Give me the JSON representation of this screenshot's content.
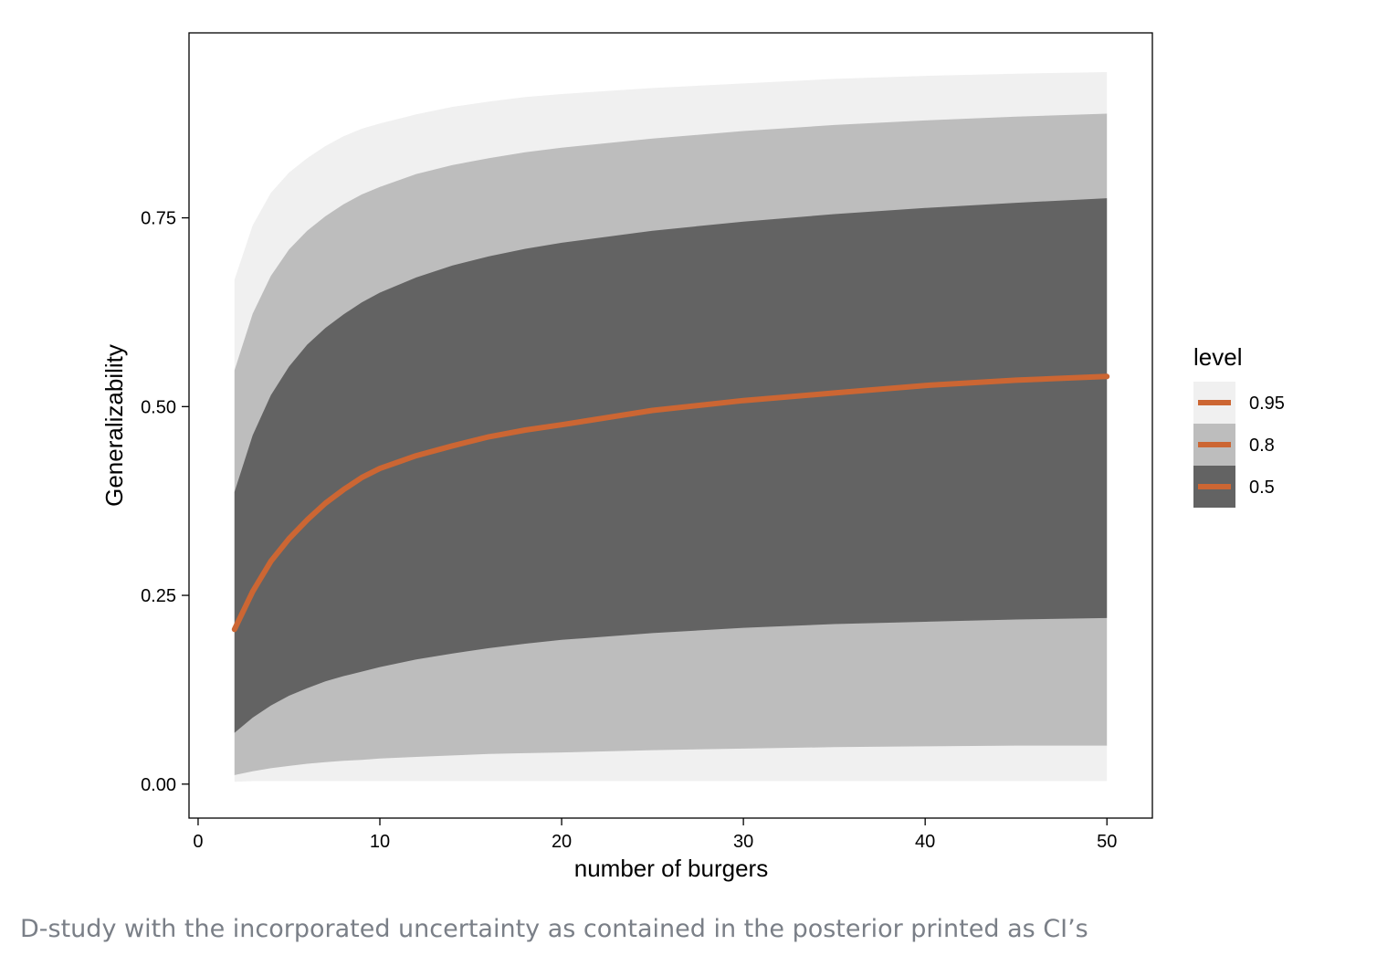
{
  "caption": "D-study with the incorporated uncertainty as contained in the posterior printed as CI’s",
  "chart_data": {
    "type": "area",
    "xlabel": "number of burgers",
    "ylabel": "Generalizability",
    "xlim": [
      -0.5,
      52.5
    ],
    "ylim": [
      -0.045,
      0.995
    ],
    "x_ticks": [
      0,
      10,
      20,
      30,
      40,
      50
    ],
    "x_tick_labels": [
      "0",
      "10",
      "20",
      "30",
      "40",
      "50"
    ],
    "y_ticks": [
      0,
      0.25,
      0.5,
      0.75
    ],
    "y_tick_labels": [
      "0.00",
      "0.25",
      "0.50",
      "0.75"
    ],
    "grid": false,
    "legend": {
      "title": "level",
      "position": "right",
      "entries": [
        {
          "label": "0.95",
          "fill": "#f0f0f0"
        },
        {
          "label": "0.8",
          "fill": "#bdbdbd"
        },
        {
          "label": "0.5",
          "fill": "#636363"
        }
      ],
      "line_color": "#cc6633"
    },
    "x": [
      2,
      3,
      4,
      5,
      6,
      7,
      8,
      9,
      10,
      12,
      14,
      16,
      18,
      20,
      25,
      30,
      35,
      40,
      45,
      50
    ],
    "median": [
      0.205,
      0.255,
      0.295,
      0.325,
      0.35,
      0.372,
      0.39,
      0.406,
      0.418,
      0.435,
      0.448,
      0.46,
      0.469,
      0.476,
      0.495,
      0.508,
      0.518,
      0.528,
      0.535,
      0.54
    ],
    "bands": [
      {
        "level": "0.95",
        "lower": [
          0.003,
          0.004,
          0.004,
          0.004,
          0.004,
          0.004,
          0.004,
          0.004,
          0.004,
          0.004,
          0.004,
          0.004,
          0.004,
          0.004,
          0.004,
          0.004,
          0.004,
          0.004,
          0.004,
          0.004
        ],
        "upper": [
          0.668,
          0.74,
          0.783,
          0.81,
          0.829,
          0.845,
          0.858,
          0.868,
          0.875,
          0.887,
          0.897,
          0.904,
          0.91,
          0.914,
          0.922,
          0.928,
          0.934,
          0.938,
          0.941,
          0.943
        ]
      },
      {
        "level": "0.8",
        "lower": [
          0.012,
          0.017,
          0.021,
          0.024,
          0.027,
          0.029,
          0.031,
          0.032,
          0.034,
          0.036,
          0.038,
          0.04,
          0.041,
          0.042,
          0.045,
          0.047,
          0.049,
          0.05,
          0.051,
          0.051
        ],
        "upper": [
          0.548,
          0.623,
          0.673,
          0.708,
          0.733,
          0.752,
          0.768,
          0.781,
          0.791,
          0.808,
          0.82,
          0.829,
          0.837,
          0.843,
          0.855,
          0.865,
          0.873,
          0.879,
          0.884,
          0.888
        ]
      },
      {
        "level": "0.5",
        "lower": [
          0.068,
          0.088,
          0.104,
          0.117,
          0.127,
          0.136,
          0.143,
          0.149,
          0.155,
          0.165,
          0.173,
          0.18,
          0.186,
          0.191,
          0.2,
          0.207,
          0.212,
          0.215,
          0.218,
          0.22
        ],
        "upper": [
          0.387,
          0.462,
          0.515,
          0.553,
          0.582,
          0.604,
          0.622,
          0.638,
          0.651,
          0.671,
          0.687,
          0.699,
          0.709,
          0.717,
          0.733,
          0.745,
          0.755,
          0.763,
          0.77,
          0.776
        ]
      }
    ]
  }
}
